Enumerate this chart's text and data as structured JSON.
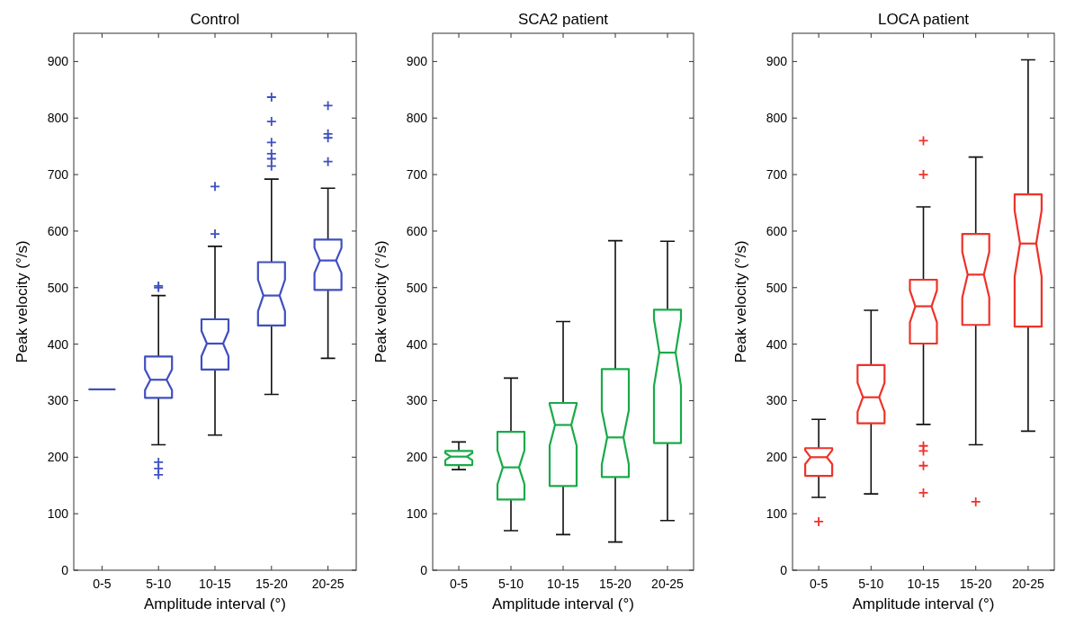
{
  "chart_data": [
    {
      "type": "box",
      "title": "Control",
      "xlabel": "Amplitude interval (°)",
      "ylabel": "Peak velocity (°/s)",
      "categories": [
        "0-5",
        "5-10",
        "10-15",
        "15-20",
        "20-25"
      ],
      "ylim": [
        0,
        950
      ],
      "yticks": [
        0,
        100,
        200,
        300,
        400,
        500,
        600,
        700,
        800,
        900
      ],
      "marker": "cross",
      "series": [
        {
          "color": "#3f4fbf",
          "boxes": [
            {
              "low": 320,
              "q1": 320,
              "median": 320,
              "q3": 320,
              "high": 320
            },
            {
              "low": 222,
              "q1": 305,
              "median": 337,
              "q3": 378,
              "high": 486,
              "outliers": [
                503,
                500,
                191,
                180,
                169
              ]
            },
            {
              "low": 239,
              "q1": 355,
              "median": 401,
              "q3": 444,
              "high": 573,
              "outliers": [
                679,
                595
              ]
            },
            {
              "low": 311,
              "q1": 433,
              "median": 486,
              "q3": 545,
              "high": 692,
              "outliers": [
                837,
                794,
                757,
                737,
                728,
                715
              ]
            },
            {
              "low": 375,
              "q1": 496,
              "median": 548,
              "q3": 585,
              "high": 676,
              "outliers": [
                822,
                772,
                765,
                723
              ]
            }
          ]
        }
      ]
    },
    {
      "type": "box",
      "title": "SCA2 patient",
      "xlabel": "Amplitude interval (°)",
      "ylabel": "Peak velocity (°/s)",
      "categories": [
        "0-5",
        "5-10",
        "10-15",
        "15-20",
        "20-25"
      ],
      "ylim": [
        0,
        950
      ],
      "yticks": [
        0,
        100,
        200,
        300,
        400,
        500,
        600,
        700,
        800,
        900
      ],
      "series": [
        {
          "color": "#1aaa4a",
          "boxes": [
            {
              "low": 178,
              "q1": 186,
              "median": 201,
              "q3": 211,
              "high": 227
            },
            {
              "low": 70,
              "q1": 125,
              "median": 182,
              "q3": 245,
              "high": 340
            },
            {
              "low": 63,
              "q1": 149,
              "median": 257,
              "q3": 296,
              "high": 440
            },
            {
              "low": 50,
              "q1": 165,
              "median": 235,
              "q3": 356,
              "high": 583
            },
            {
              "low": 88,
              "q1": 225,
              "median": 385,
              "q3": 461,
              "high": 582
            }
          ]
        }
      ]
    },
    {
      "type": "box",
      "title": "LOCA patient",
      "xlabel": "Amplitude interval (°)",
      "ylabel": "Peak velocity (°/s)",
      "categories": [
        "0-5",
        "5-10",
        "10-15",
        "15-20",
        "20-25"
      ],
      "ylim": [
        0,
        950
      ],
      "yticks": [
        0,
        100,
        200,
        300,
        400,
        500,
        600,
        700,
        800,
        900
      ],
      "marker": "cross",
      "series": [
        {
          "color": "#ee3228",
          "boxes": [
            {
              "low": 129,
              "q1": 167,
              "median": 200,
              "q3": 216,
              "high": 267,
              "outliers": [
                86
              ]
            },
            {
              "low": 135,
              "q1": 260,
              "median": 306,
              "q3": 363,
              "high": 460
            },
            {
              "low": 258,
              "q1": 401,
              "median": 467,
              "q3": 514,
              "high": 643,
              "outliers": [
                760,
                700,
                220,
                211,
                185,
                137
              ]
            },
            {
              "low": 222,
              "q1": 434,
              "median": 523,
              "q3": 595,
              "high": 731,
              "outliers": [
                121
              ]
            },
            {
              "low": 246,
              "q1": 431,
              "median": 578,
              "q3": 665,
              "high": 903
            }
          ]
        }
      ]
    }
  ]
}
